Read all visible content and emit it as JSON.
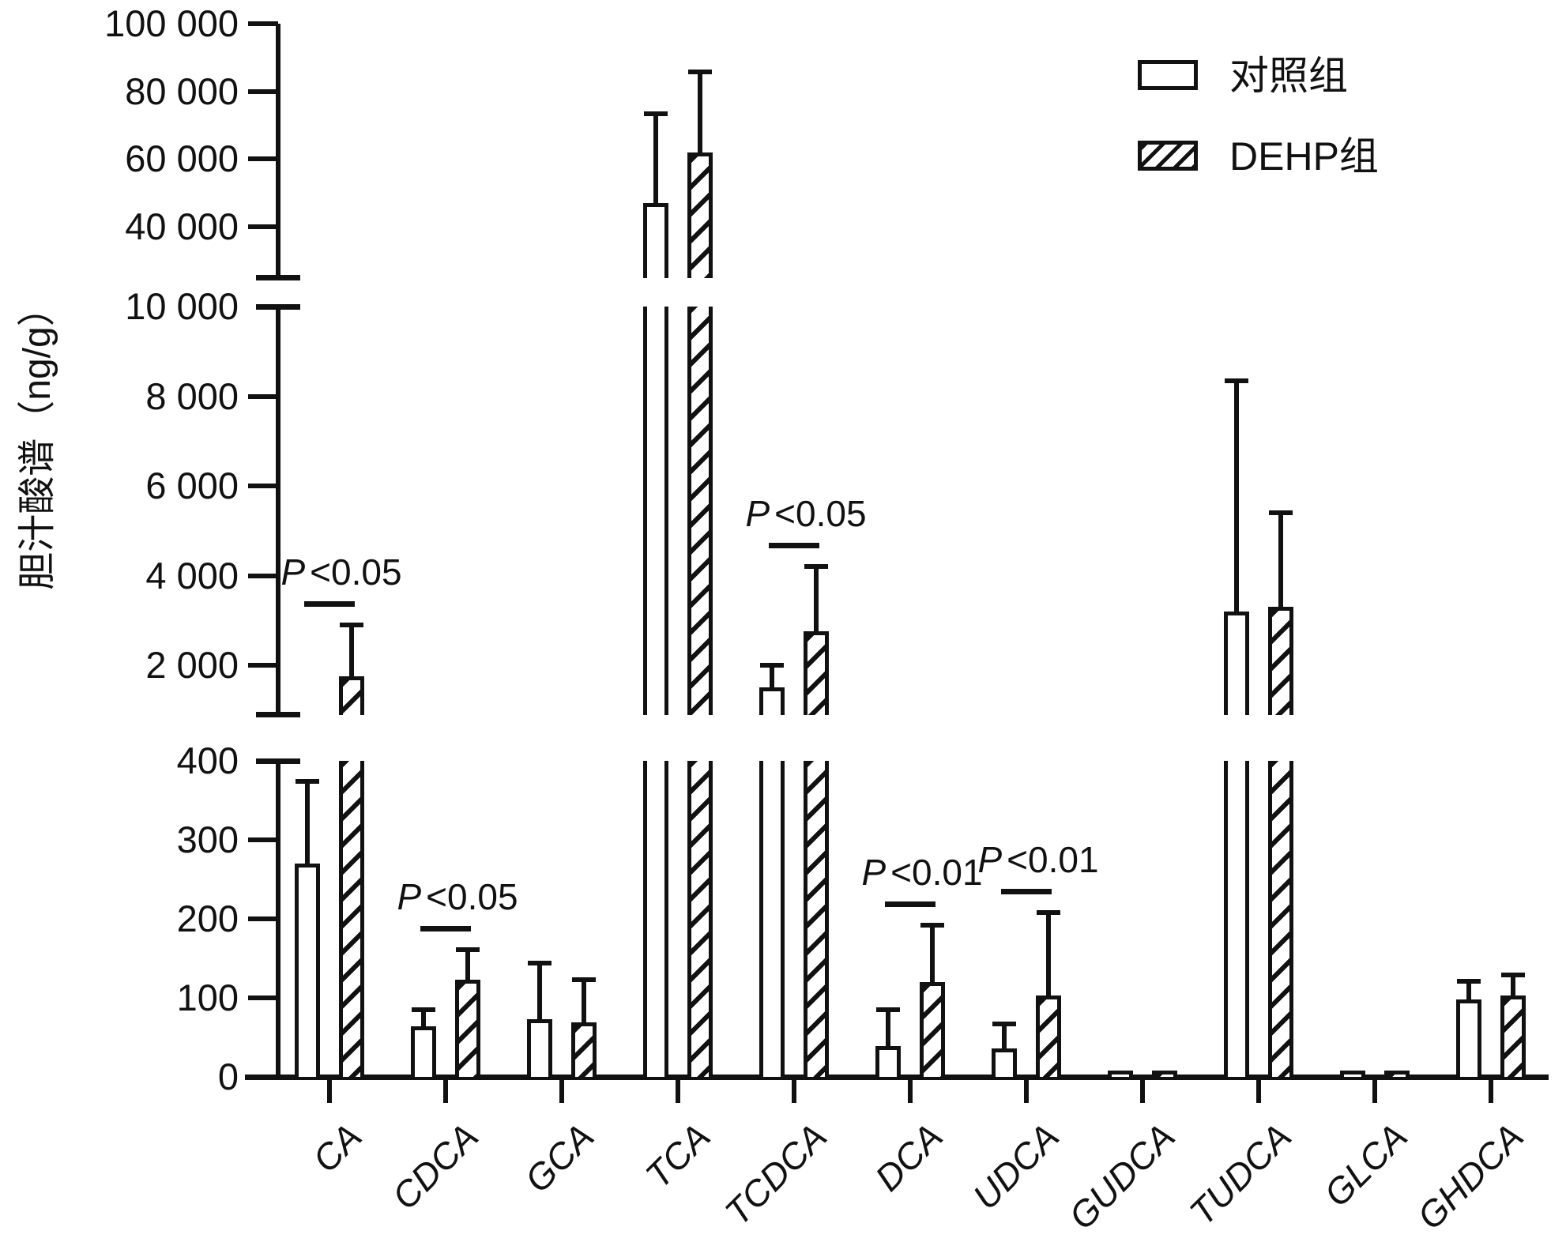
{
  "figure": {
    "background": "#ffffff",
    "ink_color": "#111111",
    "ylabel": "胆汁酸谱（ng/g）",
    "legend": {
      "control_label": "对照组",
      "dehp_label": "DEHP组"
    }
  },
  "chart_data": {
    "type": "bar",
    "title": "",
    "xlabel": "",
    "ylabel": "胆汁酸谱（ng/g）",
    "grid": false,
    "legend_position": "top-right",
    "axis_break": true,
    "categories": [
      "CA",
      "CDCA",
      "GCA",
      "TCA",
      "TCDCA",
      "DCA",
      "UDCA",
      "GUDCA",
      "TUDCA",
      "GLCA",
      "GHDCA"
    ],
    "series": [
      {
        "name": "对照组",
        "style": "open",
        "values": [
          270,
          64,
          73,
          47000,
          1500,
          39,
          36,
          8,
          3200,
          8,
          98
        ],
        "error_top": [
          374,
          85,
          144,
          73300,
          2000,
          85,
          67,
          null,
          8350,
          null,
          121
        ]
      },
      {
        "name": "DEHP组",
        "style": "hatched",
        "values": [
          1750,
          123,
          69,
          62000,
          2750,
          120,
          103,
          8,
          3300,
          8,
          103
        ],
        "error_top": [
          2900,
          161,
          123,
          85700,
          4200,
          192,
          208,
          null,
          5400,
          null,
          129
        ]
      }
    ],
    "significance": [
      {
        "category": "CA",
        "text": "P<0.05"
      },
      {
        "category": "CDCA",
        "text": "P<0.05"
      },
      {
        "category": "TCDCA",
        "text": "P<0.05"
      },
      {
        "category": "DCA",
        "text": "P<0.01"
      },
      {
        "category": "UDCA",
        "text": "P<0.01"
      }
    ],
    "panels": [
      {
        "v_top": 100000,
        "v_bottom": 24800,
        "ticks": [
          {
            "value": 100000,
            "label": "100 000",
            "cross": false
          },
          {
            "value": 80000,
            "label": "80 000",
            "cross": false
          },
          {
            "value": 60000,
            "label": "60 000",
            "cross": false
          },
          {
            "value": 40000,
            "label": "40 000",
            "cross": false
          }
        ]
      },
      {
        "v_top": 10000,
        "v_bottom": 890,
        "ticks": [
          {
            "value": 10000,
            "label": "10 000",
            "cross": true
          },
          {
            "value": 8000,
            "label": "8 000",
            "cross": false
          },
          {
            "value": 6000,
            "label": "6 000",
            "cross": false
          },
          {
            "value": 4000,
            "label": "4 000",
            "cross": false
          },
          {
            "value": 2000,
            "label": "2 000",
            "cross": false
          }
        ]
      },
      {
        "v_top": 400,
        "v_bottom": 0,
        "ticks": [
          {
            "value": 400,
            "label": "400",
            "cross": true
          },
          {
            "value": 300,
            "label": "300",
            "cross": false
          },
          {
            "value": 200,
            "label": "200",
            "cross": false
          },
          {
            "value": 100,
            "label": "100",
            "cross": false
          },
          {
            "value": 0,
            "label": "0",
            "cross": false
          }
        ]
      }
    ]
  }
}
